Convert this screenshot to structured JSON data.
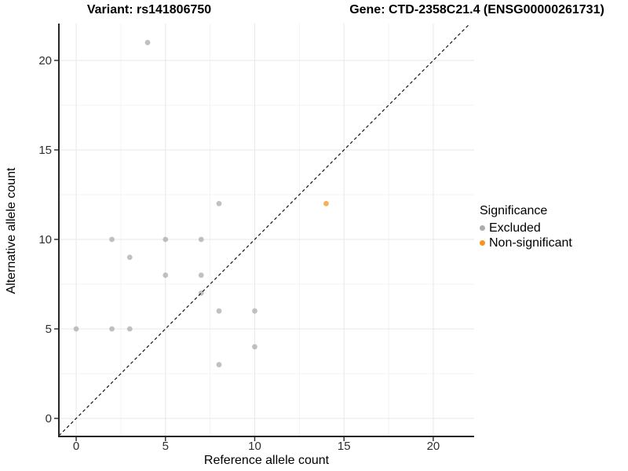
{
  "titles": {
    "variant": "Variant: rs141806750",
    "gene": "Gene: CTD-2358C21.4 (ENSG00000261731)"
  },
  "axes": {
    "x": {
      "label": "Reference allele count",
      "ticks": [
        0,
        5,
        10,
        15,
        20
      ],
      "minor_ticks": [
        2.5,
        7.5,
        12.5,
        17.5
      ],
      "range": [
        -0.97,
        22.29
      ]
    },
    "y": {
      "label": "Alternative allele count",
      "ticks": [
        0,
        5,
        10,
        15,
        20
      ],
      "minor_ticks": [
        2.5,
        7.5,
        12.5,
        17.5
      ],
      "range": [
        -1.01,
        22.06
      ]
    }
  },
  "legend": {
    "title": "Significance",
    "items": [
      {
        "label": "Excluded",
        "color": "#ACACAC"
      },
      {
        "label": "Non-significant",
        "color": "#F7941D"
      }
    ]
  },
  "colors": {
    "grid_major": "#E7E7E7",
    "grid_minor": "#F3F3F3",
    "axis_line": "#262626",
    "identity_line": "#141414",
    "excluded": "#ACACAC",
    "non_significant": "#F7941D"
  },
  "chart_data": {
    "type": "scatter",
    "title": "Variant: rs141806750 / Gene: CTD-2358C21.4 (ENSG00000261731)",
    "xlabel": "Reference allele count",
    "ylabel": "Alternative allele count",
    "xlim": [
      -0.97,
      22.29
    ],
    "ylim": [
      -1.01,
      22.06
    ],
    "grid": "major+minor",
    "legend_position": "right",
    "identity_line": {
      "equation": "y = x",
      "style": "dashed",
      "color": "#141414"
    },
    "series": [
      {
        "name": "Excluded",
        "color": "#ACACAC",
        "points": [
          [
            4,
            21
          ],
          [
            8,
            12
          ],
          [
            2,
            10
          ],
          [
            5,
            10
          ],
          [
            7,
            10
          ],
          [
            3,
            9
          ],
          [
            5,
            8
          ],
          [
            7,
            8
          ],
          [
            7,
            7
          ],
          [
            8,
            6
          ],
          [
            10,
            6
          ],
          [
            0,
            5
          ],
          [
            2,
            5
          ],
          [
            3,
            5
          ],
          [
            10,
            4
          ],
          [
            8,
            3
          ]
        ]
      },
      {
        "name": "Non-significant",
        "color": "#F7941D",
        "points": [
          [
            14,
            12
          ]
        ]
      }
    ]
  }
}
